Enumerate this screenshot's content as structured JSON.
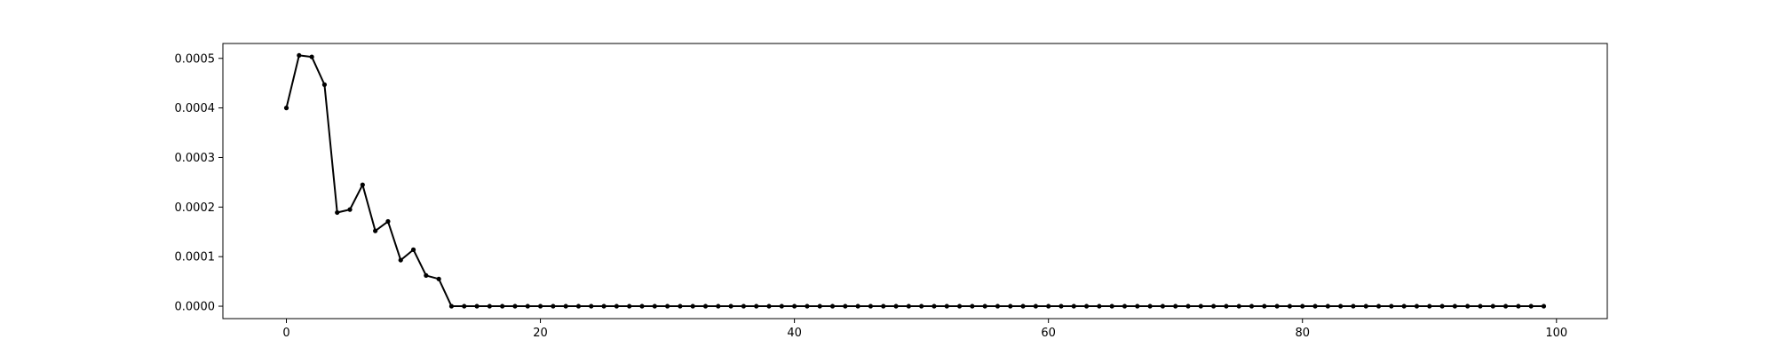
{
  "chart_data": {
    "type": "line",
    "title": "",
    "xlabel": "",
    "ylabel": "",
    "xlim": [
      -5,
      104
    ],
    "ylim": [
      -2.5e-05,
      0.00053
    ],
    "x_ticks": [
      0,
      20,
      40,
      60,
      80,
      100
    ],
    "x_tick_labels": [
      "0",
      "20",
      "40",
      "60",
      "80",
      "100"
    ],
    "y_ticks": [
      0.0,
      0.0001,
      0.0002,
      0.0003,
      0.0004,
      0.0005
    ],
    "y_tick_labels": [
      "0.0000",
      "0.0001",
      "0.0002",
      "0.0003",
      "0.0004",
      "0.0005"
    ],
    "grid": false,
    "legend": "none",
    "line_color": "#000000",
    "marker": "dot",
    "series": [
      {
        "x": [
          0,
          1,
          2,
          3,
          4,
          5,
          6,
          7,
          8,
          9,
          10,
          11,
          12,
          13,
          14,
          15,
          16,
          17,
          18,
          19,
          20,
          21,
          22,
          23,
          24,
          25,
          26,
          27,
          28,
          29,
          30,
          31,
          32,
          33,
          34,
          35,
          36,
          37,
          38,
          39,
          40,
          41,
          42,
          43,
          44,
          45,
          46,
          47,
          48,
          49,
          50,
          51,
          52,
          53,
          54,
          55,
          56,
          57,
          58,
          59,
          60,
          61,
          62,
          63,
          64,
          65,
          66,
          67,
          68,
          69,
          70,
          71,
          72,
          73,
          74,
          75,
          76,
          77,
          78,
          79,
          80,
          81,
          82,
          83,
          84,
          85,
          86,
          87,
          88,
          89,
          90,
          91,
          92,
          93,
          94,
          95,
          96,
          97,
          98,
          99
        ],
        "values": [
          0.0004,
          0.000506,
          0.000503,
          0.000447,
          0.000189,
          0.000195,
          0.000245,
          0.000152,
          0.000171,
          9.3e-05,
          0.000114,
          6.2e-05,
          5.5e-05,
          0.0,
          0.0,
          0.0,
          0.0,
          0.0,
          0.0,
          0.0,
          0.0,
          0.0,
          0.0,
          0.0,
          0.0,
          0.0,
          0.0,
          0.0,
          0.0,
          0.0,
          0.0,
          0.0,
          0.0,
          0.0,
          0.0,
          0.0,
          0.0,
          0.0,
          0.0,
          0.0,
          0.0,
          0.0,
          0.0,
          0.0,
          0.0,
          0.0,
          0.0,
          0.0,
          0.0,
          0.0,
          0.0,
          0.0,
          0.0,
          0.0,
          0.0,
          0.0,
          0.0,
          0.0,
          0.0,
          0.0,
          0.0,
          0.0,
          0.0,
          0.0,
          0.0,
          0.0,
          0.0,
          0.0,
          0.0,
          0.0,
          0.0,
          0.0,
          0.0,
          0.0,
          0.0,
          0.0,
          0.0,
          0.0,
          0.0,
          0.0,
          0.0,
          0.0,
          0.0,
          0.0,
          0.0,
          0.0,
          0.0,
          0.0,
          0.0,
          0.0,
          0.0,
          0.0,
          0.0,
          0.0,
          0.0,
          0.0,
          0.0,
          0.0,
          0.0,
          0.0
        ]
      }
    ]
  }
}
